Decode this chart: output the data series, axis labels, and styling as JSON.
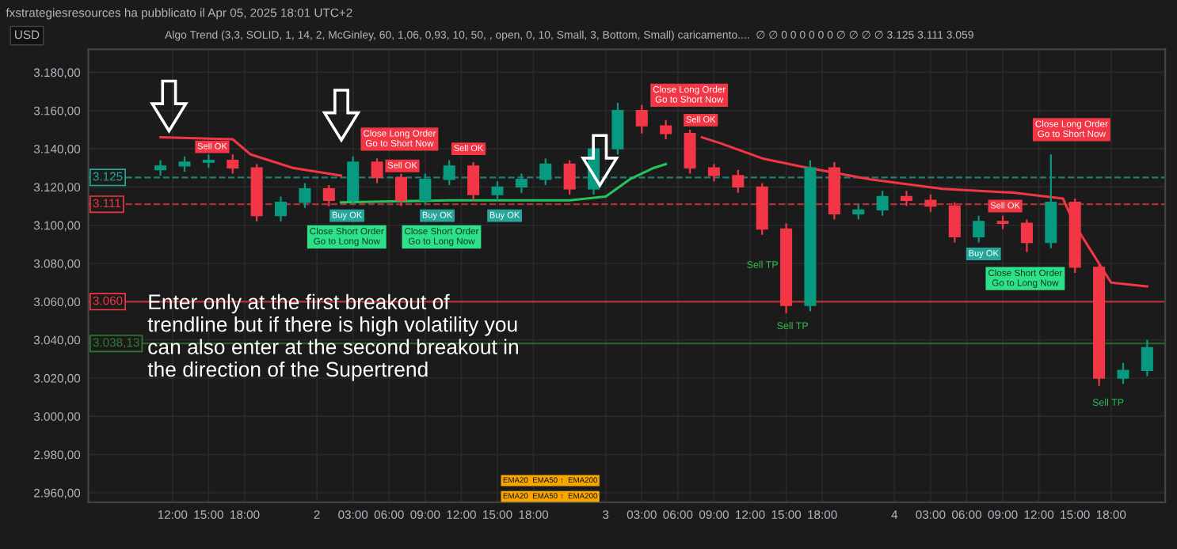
{
  "chart_data": {
    "type": "candlestick",
    "title": "fxstrategiesresources ha pubblicato il Apr 05, 2025 18:01 UTC+2",
    "subtitle": "Algo Trend (3,3, SOLID, 1, 14, 2, McGinley, 60, 1,06, 0,93, 10, 50, , open, 0, 10, Small, 3, Bottom, Small) caricamento....  ∅ ∅ 0 0 0 0 0 0 ∅ ∅ ∅ ∅ 3.125 3.111 3.059",
    "ylabel": "USD",
    "x": [
      "2025-04-01T11:00",
      "2025-04-01T13:00",
      "2025-04-01T15:00",
      "2025-04-01T17:00",
      "2025-04-01T19:00",
      "2025-04-01T21:00",
      "2025-04-01T23:00",
      "2025-04-02T01:00",
      "2025-04-02T03:00",
      "2025-04-02T05:00",
      "2025-04-02T07:00",
      "2025-04-02T09:00",
      "2025-04-02T11:00",
      "2025-04-02T13:00",
      "2025-04-02T15:00",
      "2025-04-02T17:00",
      "2025-04-02T19:00",
      "2025-04-02T21:00",
      "2025-04-02T23:00",
      "2025-04-03T01:00",
      "2025-04-03T03:00",
      "2025-04-03T05:00",
      "2025-04-03T07:00",
      "2025-04-03T09:00",
      "2025-04-03T11:00",
      "2025-04-03T13:00",
      "2025-04-03T15:00",
      "2025-04-03T17:00",
      "2025-04-03T19:00",
      "2025-04-03T21:00",
      "2025-04-03T23:00",
      "2025-04-04T01:00",
      "2025-04-04T03:00",
      "2025-04-04T05:00",
      "2025-04-04T07:00",
      "2025-04-04T09:00",
      "2025-04-04T11:00",
      "2025-04-04T13:00",
      "2025-04-04T15:00",
      "2025-04-04T17:00",
      "2025-04-04T19:00",
      "2025-04-04T21:00"
    ],
    "ohlc": [
      [
        3129,
        3134,
        3126,
        3131
      ],
      [
        3131,
        3136,
        3128,
        3133
      ],
      [
        3133,
        3137,
        3130,
        3134
      ],
      [
        3134,
        3137,
        3127,
        3130
      ],
      [
        3130,
        3132,
        3102,
        3105
      ],
      [
        3105,
        3115,
        3102,
        3112
      ],
      [
        3112,
        3122,
        3109,
        3119
      ],
      [
        3119,
        3121,
        3110,
        3113
      ],
      [
        3113,
        3136,
        3111,
        3133
      ],
      [
        3133,
        3135,
        3122,
        3125
      ],
      [
        3125,
        3127,
        3110,
        3113
      ],
      [
        3113,
        3127,
        3111,
        3124
      ],
      [
        3124,
        3134,
        3121,
        3131
      ],
      [
        3131,
        3133,
        3113,
        3116
      ],
      [
        3116,
        3123,
        3113,
        3120
      ],
      [
        3120,
        3127,
        3117,
        3124
      ],
      [
        3124,
        3135,
        3121,
        3132
      ],
      [
        3132,
        3134,
        3116,
        3119
      ],
      [
        3119,
        3143,
        3116,
        3140
      ],
      [
        3140,
        3164,
        3137,
        3160
      ],
      [
        3160,
        3163,
        3148,
        3152
      ],
      [
        3152,
        3155,
        3145,
        3148
      ],
      [
        3148,
        3150,
        3127,
        3130
      ],
      [
        3130,
        3132,
        3123,
        3126
      ],
      [
        3126,
        3129,
        3117,
        3120
      ],
      [
        3120,
        3122,
        3095,
        3098
      ],
      [
        3098,
        3101,
        3054,
        3058
      ],
      [
        3058,
        3134,
        3055,
        3130
      ],
      [
        3130,
        3133,
        3103,
        3106
      ],
      [
        3106,
        3111,
        3103,
        3108
      ],
      [
        3108,
        3118,
        3105,
        3115
      ],
      [
        3115,
        3118,
        3110,
        3113
      ],
      [
        3113,
        3116,
        3107,
        3110
      ],
      [
        3110,
        3112,
        3091,
        3094
      ],
      [
        3094,
        3105,
        3091,
        3102
      ],
      [
        3102,
        3105,
        3098,
        3101
      ],
      [
        3101,
        3103,
        3086,
        3091
      ],
      [
        3091,
        3137,
        3088,
        3112
      ],
      [
        3112,
        3114,
        3075,
        3078
      ],
      [
        3078,
        3080,
        3016,
        3020
      ],
      [
        3020,
        3028,
        3017,
        3024
      ],
      [
        3024,
        3040,
        3021,
        3036
      ]
    ],
    "series": [
      {
        "type": "line",
        "color": "#f23645",
        "x": [
          "2025-04-01T11:00",
          "2025-04-01T17:00",
          "2025-04-01T18:30",
          "2025-04-01T22:00",
          "2025-04-02T02:00",
          "2025-04-03T06:00",
          "2025-04-03T08:00",
          "2025-04-03T09:30",
          "2025-04-03T13:00",
          "2025-04-03T16:00",
          "2025-04-03T22:00",
          "2025-04-04T04:00",
          "2025-04-04T10:00",
          "2025-04-04T14:00",
          "2025-04-04T15:00",
          "2025-04-04T16:00",
          "2025-04-04T18:00",
          "2025-04-04T21:00"
        ],
        "values": [
          3146,
          3145,
          3137,
          3130,
          3126,
          null,
          3146,
          3143,
          3135,
          3131,
          3124,
          3119,
          3117,
          3114,
          3100,
          3090,
          3070,
          3068
        ]
      },
      {
        "type": "line",
        "color": "#22c55e",
        "x": [
          "2025-04-02T02:00",
          "2025-04-02T11:00",
          "2025-04-02T21:00",
          "2025-04-03T00:00",
          "2025-04-03T02:00",
          "2025-04-03T04:00",
          "2025-04-03T05:00"
        ],
        "values": [
          3112,
          3113,
          3113,
          3115,
          3124,
          3130,
          3132
        ]
      }
    ],
    "ref_lines": [
      {
        "axis": "y",
        "value": 3125,
        "label": "3.125",
        "color": "#26a69a",
        "line_style": "dashed"
      },
      {
        "axis": "y",
        "value": 3111,
        "label": "3.111",
        "color": "#f23645",
        "line_style": "dashed"
      },
      {
        "axis": "y",
        "value": 3060,
        "label": "3.060",
        "color": "#f23645",
        "line_style": "solid"
      },
      {
        "axis": "y",
        "value": 3038.13,
        "label": "3.038,13",
        "color": "#2e7d32",
        "line_style": "solid"
      }
    ],
    "annotations": [
      "Enter only at the first breakout of\ntrendline but if there is high volatility you\ncan also enter at the second breakout in\nthe direction of the Supertrend",
      "EMA20  EMA50 ↑  EMA200",
      "EMA20  EMA50 ↑  EMA200",
      "Close Long Order\nGo to Short Now",
      "Close Short Order\nGo to Long Now",
      "Close Short Order\nGo to Long Now",
      "Close Long Order\nGo to Short Now",
      "Sell TP",
      "Close Long Order\nGo to Short Now",
      "Close Short Order\nGo to Long Now",
      "Sell TP",
      {
        "text": "Sell OK",
        "x": "2025-04-01T15:18",
        "y": 3141
      },
      {
        "text": "Buy OK",
        "x": "2025-04-02T02:30",
        "y": 3105
      },
      {
        "text": "Sell OK",
        "x": "2025-04-02T07:06",
        "y": 3131
      },
      {
        "text": "Buy OK",
        "x": "2025-04-02T10:00",
        "y": 3105
      },
      {
        "text": "Sell OK",
        "x": "2025-04-02T12:36",
        "y": 3140
      },
      {
        "text": "Buy OK",
        "x": "2025-04-02T15:36",
        "y": 3105
      },
      {
        "text": "Sell OK",
        "x": "2025-04-03T07:54",
        "y": 3155
      },
      "Sell TP",
      {
        "text": "Buy OK",
        "x": "2025-04-04T07:24",
        "y": 3085
      },
      {
        "text": "Sell OK",
        "x": "2025-04-04T09:12",
        "y": 3110
      }
    ],
    "xlim": [
      "2025-04-01T05:00",
      "2025-04-04T22:30"
    ],
    "xticks": [
      {
        "value": "2025-04-01T12:00",
        "label": "12:00"
      },
      {
        "value": "2025-04-01T15:00",
        "label": "15:00"
      },
      {
        "value": "2025-04-01T18:00",
        "label": "18:00"
      },
      {
        "value": "2025-04-02T00:00",
        "label": "2"
      },
      {
        "value": "2025-04-02T03:00",
        "label": "03:00"
      },
      {
        "value": "2025-04-02T06:00",
        "label": "06:00"
      },
      {
        "value": "2025-04-02T09:00",
        "label": "09:00"
      },
      {
        "value": "2025-04-02T12:00",
        "label": "12:00"
      },
      {
        "value": "2025-04-02T15:00",
        "label": "15:00"
      },
      {
        "value": "2025-04-02T18:00",
        "label": "18:00"
      },
      {
        "value": "2025-04-03T00:00",
        "label": "3"
      },
      {
        "value": "2025-04-03T03:00",
        "label": "03:00"
      },
      {
        "value": "2025-04-03T06:00",
        "label": "06:00"
      },
      {
        "value": "2025-04-03T09:00",
        "label": "09:00"
      },
      {
        "value": "2025-04-03T12:00",
        "label": "12:00"
      },
      {
        "value": "2025-04-03T15:00",
        "label": "15:00"
      },
      {
        "value": "2025-04-03T18:00",
        "label": "18:00"
      },
      {
        "value": "2025-04-04T00:00",
        "label": "4"
      },
      {
        "value": "2025-04-04T03:00",
        "label": "03:00"
      },
      {
        "value": "2025-04-04T06:00",
        "label": "06:00"
      },
      {
        "value": "2025-04-04T09:00",
        "label": "09:00"
      },
      {
        "value": "2025-04-04T12:00",
        "label": "12:00"
      },
      {
        "value": "2025-04-04T15:00",
        "label": "15:00"
      },
      {
        "value": "2025-04-04T18:00",
        "label": "18:00"
      }
    ],
    "ylim": [
      2955,
      3192
    ],
    "yticks": [
      {
        "value": 2960,
        "label": "2.960,00"
      },
      {
        "value": 2980,
        "label": "2.980,00"
      },
      {
        "value": 3000,
        "label": "3.000,00"
      },
      {
        "value": 3020,
        "label": "3.020,00"
      },
      {
        "value": 3040,
        "label": "3.040,00"
      },
      {
        "value": 3060,
        "label": "3.060,00"
      },
      {
        "value": 3080,
        "label": "3.080,00"
      },
      {
        "value": 3100,
        "label": "3.100,00"
      },
      {
        "value": 3120,
        "label": "3.120,00"
      },
      {
        "value": 3140,
        "label": "3.140,00"
      },
      {
        "value": 3160,
        "label": "3.160,00"
      },
      {
        "value": 3180,
        "label": "3.180,00"
      }
    ],
    "grid": true
  }
}
